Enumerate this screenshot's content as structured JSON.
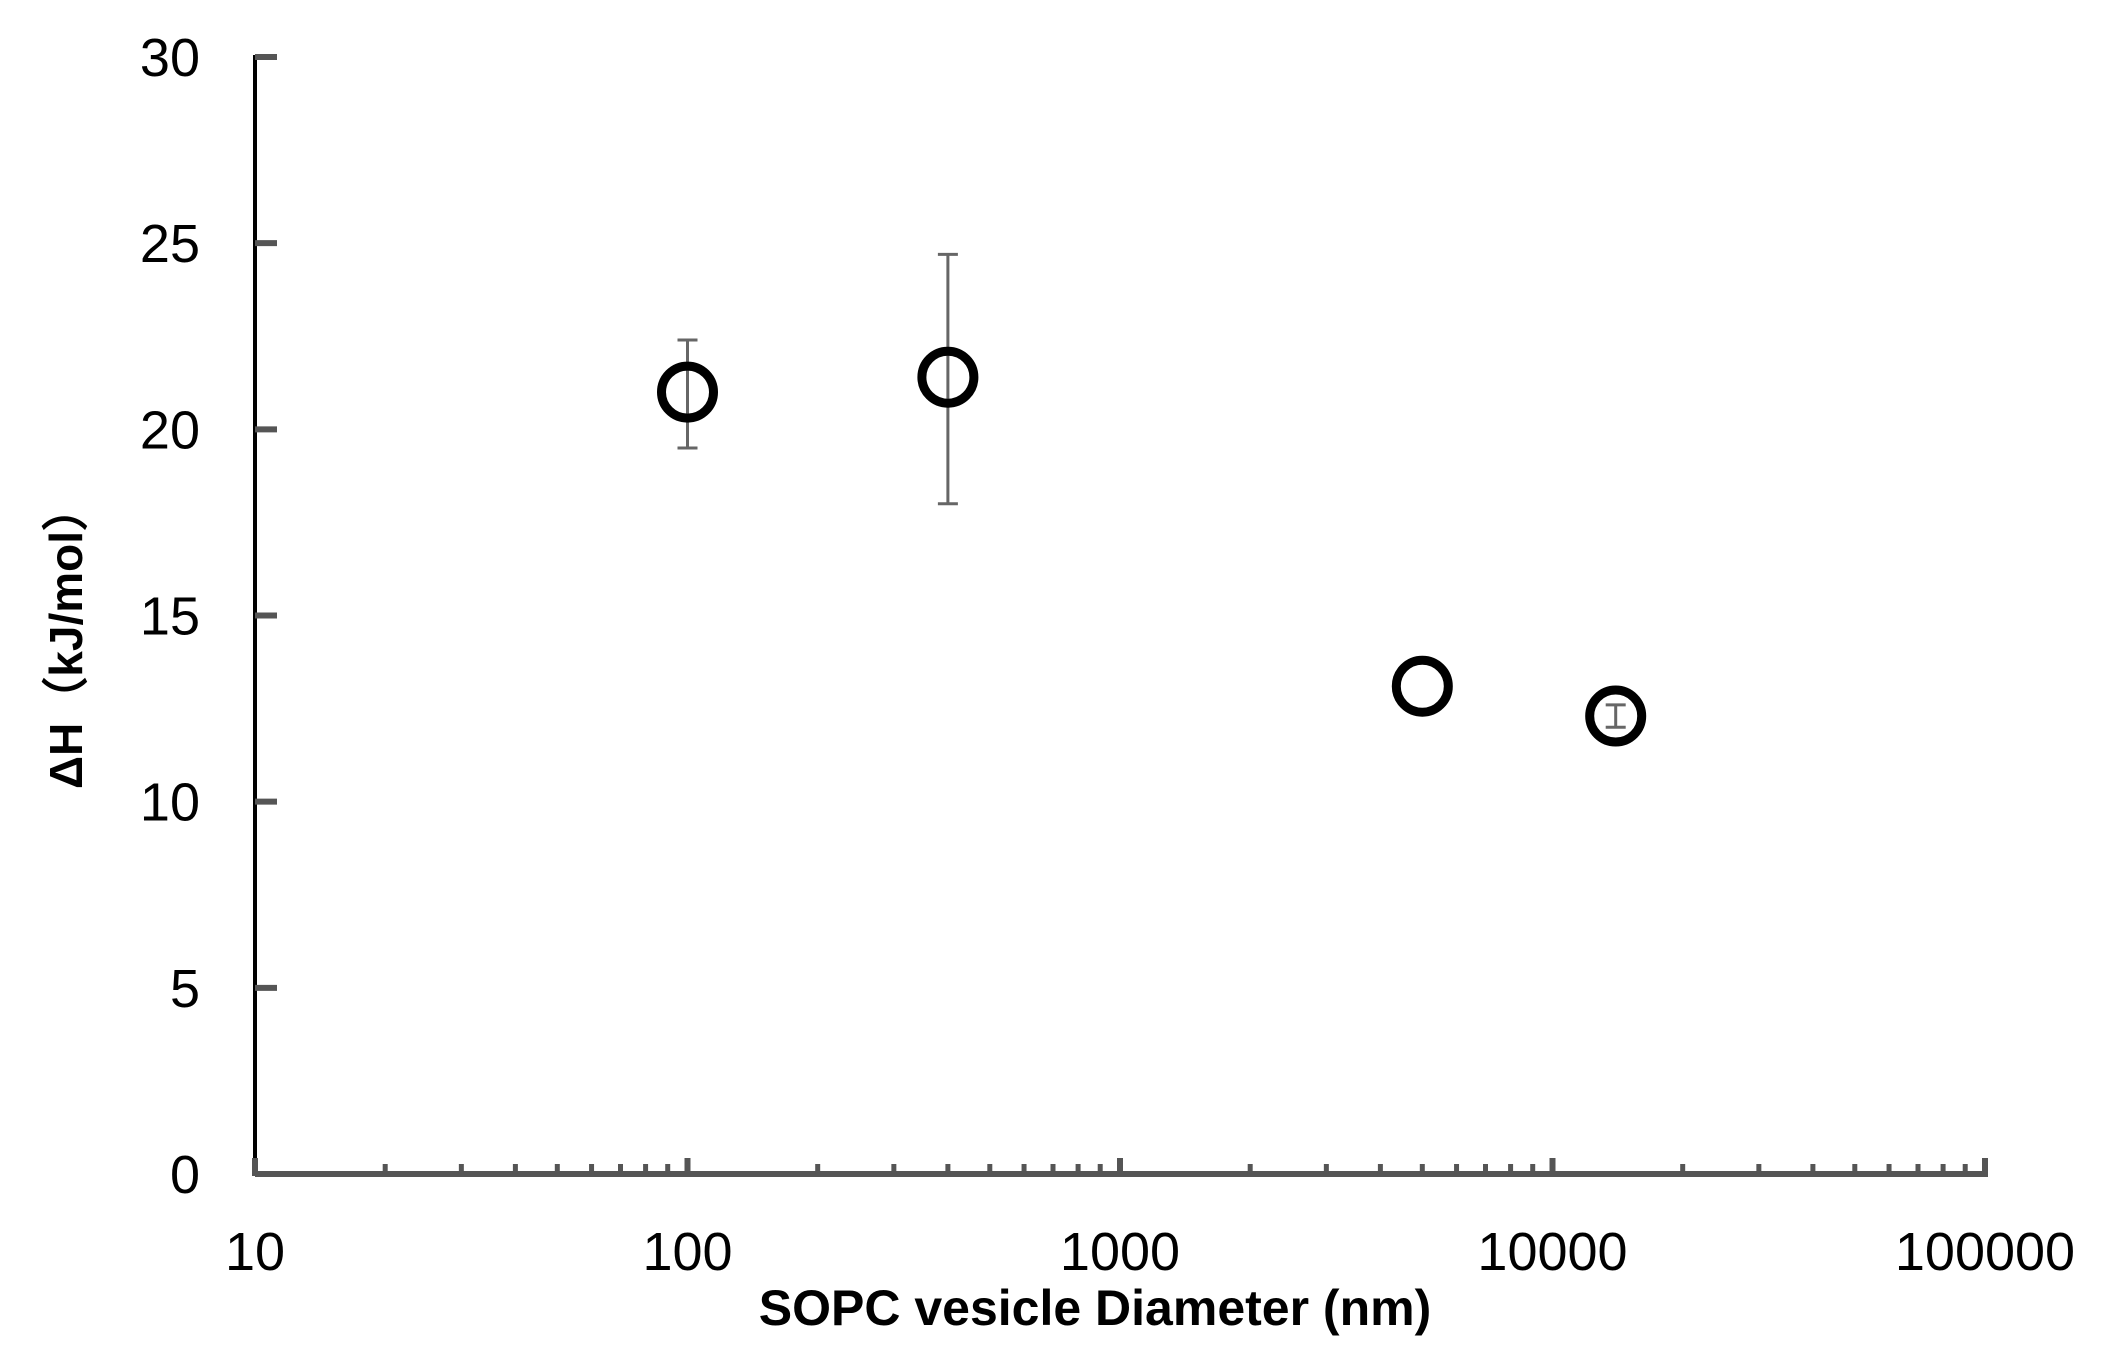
{
  "chart_data": {
    "type": "scatter",
    "title": "",
    "xlabel": "SOPC vesicle Diameter (nm)",
    "ylabel": "ΔH（kJ/mol）",
    "x_scale": "log",
    "xlim": [
      10,
      100000
    ],
    "ylim": [
      0,
      30
    ],
    "x_tick_labels": [
      "10",
      "100",
      "1000",
      "10000",
      "100000"
    ],
    "y_tick_labels": [
      "0",
      "5",
      "10",
      "15",
      "20",
      "25",
      "30"
    ],
    "grid": false,
    "legend": "none",
    "marker": "open-circle",
    "marker_color": "#000000",
    "errorbar_color": "#666666",
    "axis_color": "#555555",
    "points": [
      {
        "x": 100,
        "y": 21.0,
        "yerr_low": 19.5,
        "yerr_high": 22.4
      },
      {
        "x": 400,
        "y": 21.4,
        "yerr_low": 18.0,
        "yerr_high": 24.7
      },
      {
        "x": 5000,
        "y": 13.1,
        "yerr_low": 13.1,
        "yerr_high": 13.1
      },
      {
        "x": 14000,
        "y": 12.3,
        "yerr_low": 12.0,
        "yerr_high": 12.6
      }
    ]
  }
}
